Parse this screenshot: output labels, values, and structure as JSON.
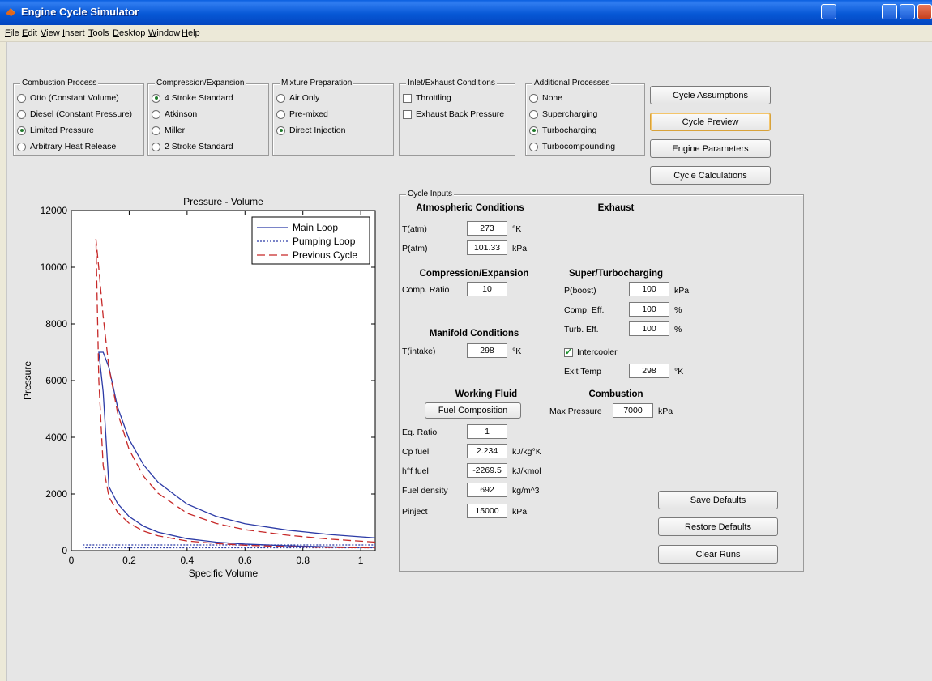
{
  "window": {
    "title": "Engine Cycle Simulator"
  },
  "menu": [
    "File",
    "Edit",
    "View",
    "Insert",
    "Tools",
    "Desktop",
    "Window",
    "Help"
  ],
  "panels": {
    "combustion": {
      "title": "Combustion Process",
      "options": [
        "Otto (Constant Volume)",
        "Diesel (Constant Pressure)",
        "Limited Pressure",
        "Arbitrary Heat Release"
      ],
      "selected": 2
    },
    "compression": {
      "title": "Compression/Expansion",
      "options": [
        "4 Stroke Standard",
        "Atkinson",
        "Miller",
        "2 Stroke Standard"
      ],
      "selected": 0
    },
    "mixture": {
      "title": "Mixture Preparation",
      "options": [
        "Air Only",
        "Pre-mixed",
        "Direct Injection"
      ],
      "selected": 2
    },
    "inlet": {
      "title": "Inlet/Exhaust Conditions",
      "options": [
        "Throttling",
        "Exhaust Back Pressure"
      ]
    },
    "additional": {
      "title": "Additional Processes",
      "options": [
        "None",
        "Supercharging",
        "Turbocharging",
        "Turbocompounding"
      ],
      "selected": 2
    }
  },
  "buttons": {
    "assumptions": "Cycle Assumptions",
    "preview": "Cycle Preview",
    "parameters": "Engine Parameters",
    "calculations": "Cycle Calculations",
    "save": "Save Defaults",
    "restore": "Restore Defaults",
    "clear": "Clear Runs",
    "fuel": "Fuel Composition"
  },
  "inputs": {
    "title": "Cycle Inputs",
    "atm_header": "Atmospheric Conditions",
    "exhaust_header": "Exhaust",
    "t_atm": {
      "label": "T(atm)",
      "value": "273",
      "unit": "°K"
    },
    "p_atm": {
      "label": "P(atm)",
      "value": "101.33",
      "unit": "kPa"
    },
    "comp_header": "Compression/Expansion",
    "comp_ratio": {
      "label": "Comp. Ratio",
      "value": "10"
    },
    "turbo_header": "Super/Turbocharging",
    "p_boost": {
      "label": "P(boost)",
      "value": "100",
      "unit": "kPa"
    },
    "comp_eff": {
      "label": "Comp. Eff.",
      "value": "100",
      "unit": "%"
    },
    "turb_eff": {
      "label": "Turb. Eff.",
      "value": "100",
      "unit": "%"
    },
    "intercooler": "Intercooler",
    "exit_temp": {
      "label": "Exit Temp",
      "value": "298",
      "unit": "°K"
    },
    "manifold_header": "Manifold Conditions",
    "t_intake": {
      "label": "T(intake)",
      "value": "298",
      "unit": "°K"
    },
    "fluid_header": "Working Fluid",
    "combustion_header": "Combustion",
    "max_pressure": {
      "label": "Max Pressure",
      "value": "7000",
      "unit": "kPa"
    },
    "eq_ratio": {
      "label": "Eq. Ratio",
      "value": "1"
    },
    "cp_fuel": {
      "label": "Cp fuel",
      "value": "2.234",
      "unit": "kJ/kg°K"
    },
    "hf_fuel": {
      "label": "h°f fuel",
      "value": "-2269.5",
      "unit": "kJ/kmol"
    },
    "fuel_density": {
      "label": "Fuel density",
      "value": "692",
      "unit": "kg/m^3"
    },
    "pinject": {
      "label": "Pinject",
      "value": "15000",
      "unit": "kPa"
    }
  },
  "chart_data": {
    "type": "line",
    "title": "Pressure - Volume",
    "xlabel": "Specific Volume",
    "ylabel": "Pressure",
    "xlim": [
      0,
      1.05
    ],
    "ylim": [
      0,
      12000
    ],
    "xticks": [
      0,
      0.2,
      0.4,
      0.6,
      0.8,
      1
    ],
    "yticks": [
      0,
      2000,
      4000,
      6000,
      8000,
      10000,
      12000
    ],
    "legend_position": "top-right",
    "series": [
      {
        "name": "Main Loop",
        "color": "#2b3aa6",
        "style": "solid",
        "x": [
          1.05,
          0.9,
          0.75,
          0.6,
          0.5,
          0.4,
          0.3,
          0.25,
          0.2,
          0.16,
          0.13,
          0.11,
          0.095,
          0.11,
          0.13,
          0.16,
          0.2,
          0.25,
          0.3,
          0.4,
          0.5,
          0.6,
          0.75,
          0.9,
          1.05
        ],
        "y": [
          450,
          560,
          720,
          950,
          1210,
          1640,
          2410,
          3020,
          3920,
          5060,
          6460,
          7000,
          7000,
          5600,
          2260,
          1660,
          1200,
          860,
          650,
          420,
          300,
          230,
          170,
          130,
          110
        ]
      },
      {
        "name": "Pumping Loop",
        "color": "#2b3aa6",
        "style": "dotted",
        "x": [
          0.04,
          1.05,
          1.05,
          0.04
        ],
        "y": [
          200,
          200,
          100,
          100
        ]
      },
      {
        "name": "Previous Cycle",
        "color": "#c62828",
        "style": "dashed",
        "x": [
          1.05,
          0.9,
          0.75,
          0.6,
          0.5,
          0.4,
          0.3,
          0.25,
          0.2,
          0.16,
          0.13,
          0.11,
          0.095,
          0.085,
          0.095,
          0.11,
          0.13,
          0.16,
          0.2,
          0.25,
          0.3,
          0.4,
          0.5,
          0.6,
          0.75,
          0.9,
          1.05
        ],
        "y": [
          300,
          400,
          540,
          740,
          960,
          1320,
          2020,
          2620,
          3560,
          4860,
          6460,
          8260,
          9960,
          11000,
          6000,
          3000,
          1900,
          1350,
          960,
          690,
          520,
          340,
          250,
          190,
          140,
          110,
          100
        ]
      }
    ]
  }
}
